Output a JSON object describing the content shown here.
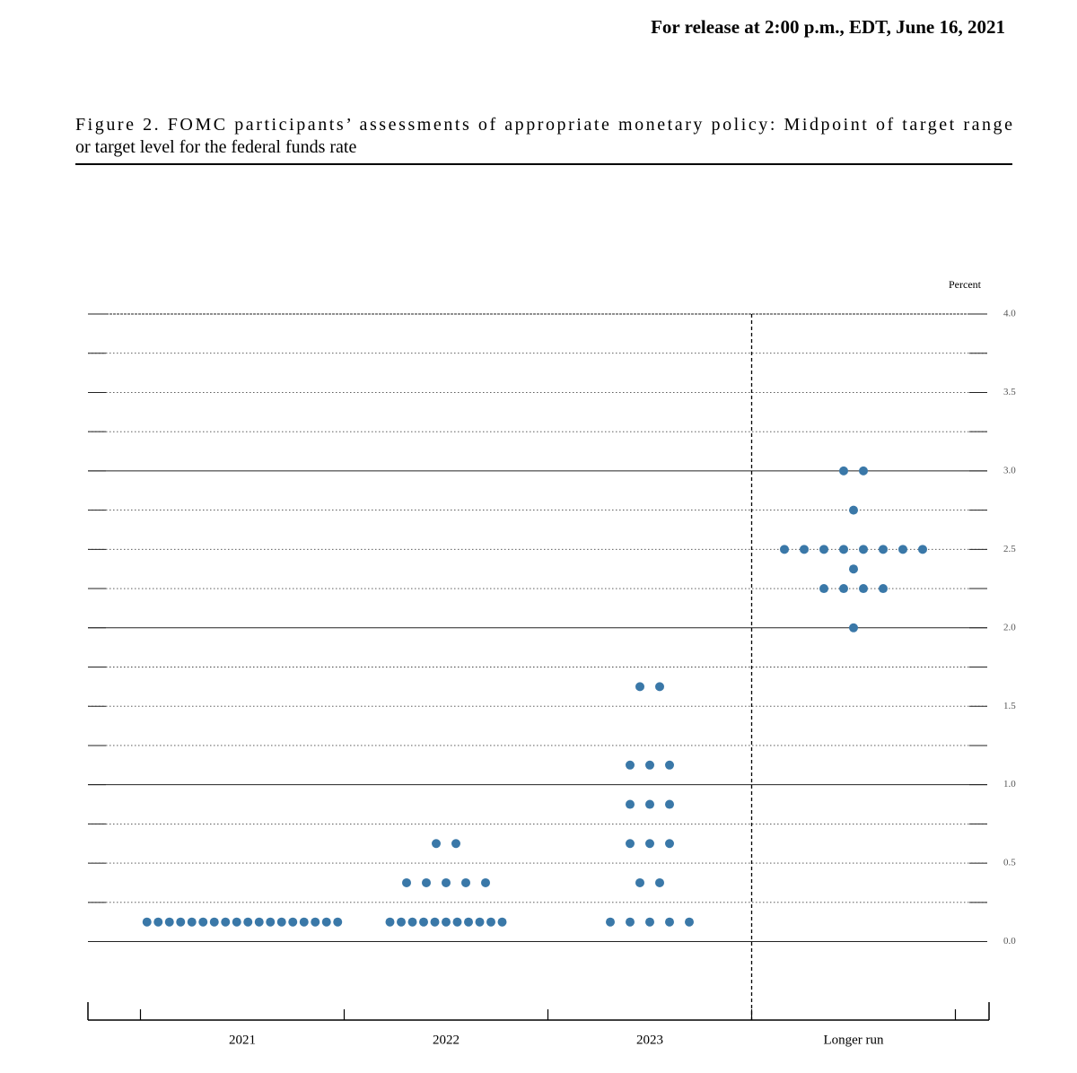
{
  "header": {
    "release": "For release at 2:00 p.m., EDT, June 16, 2021"
  },
  "caption_lines": [
    "Figure 2.  FOMC participants’ assessments of appropriate monetary policy: Midpoint of target range",
    "or target level for the federal funds rate"
  ],
  "chart_data": {
    "type": "dot",
    "y_unit": "Percent",
    "categories": [
      "2021",
      "2022",
      "2023",
      "Longer run"
    ],
    "values": [
      [
        0.125,
        0.125,
        0.125,
        0.125,
        0.125,
        0.125,
        0.125,
        0.125,
        0.125,
        0.125,
        0.125,
        0.125,
        0.125,
        0.125,
        0.125,
        0.125,
        0.125,
        0.125
      ],
      [
        0.625,
        0.625,
        0.375,
        0.375,
        0.375,
        0.375,
        0.375,
        0.125,
        0.125,
        0.125,
        0.125,
        0.125,
        0.125,
        0.125,
        0.125,
        0.125,
        0.125,
        0.125
      ],
      [
        1.625,
        1.625,
        1.125,
        1.125,
        1.125,
        0.875,
        0.875,
        0.875,
        0.625,
        0.625,
        0.625,
        0.375,
        0.375,
        0.125,
        0.125,
        0.125,
        0.125,
        0.125
      ],
      [
        3.0,
        3.0,
        2.75,
        2.5,
        2.5,
        2.5,
        2.5,
        2.5,
        2.5,
        2.5,
        2.5,
        2.375,
        2.25,
        2.25,
        2.25,
        2.25,
        2.0
      ]
    ],
    "color": "#3a78a8",
    "ylim": [
      -0.5,
      4
    ],
    "yticks": [
      {
        "value": 0,
        "label": "0.0"
      },
      0.5,
      {
        "value": 1,
        "label": "1.0"
      },
      1.5,
      {
        "value": 2,
        "label": "2.0"
      },
      2.5,
      {
        "value": 3,
        "label": "3.0"
      },
      3.5,
      {
        "value": 4,
        "label": "4.0"
      }
    ],
    "minor_yticks": [
      0.25,
      0.75,
      1.25,
      1.75,
      2.25,
      2.75,
      3.25,
      3.75
    ],
    "grid": true
  }
}
